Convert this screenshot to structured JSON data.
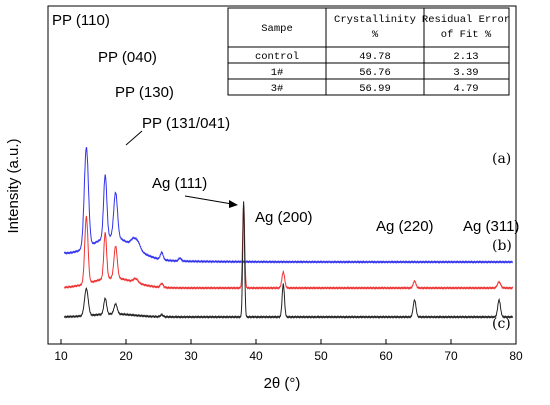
{
  "chart_data": {
    "type": "line",
    "xlabel": "2θ (°)",
    "ylabel": "Intensity (a.u.)",
    "xlim": [
      8,
      80
    ],
    "xticks": [
      10,
      20,
      30,
      40,
      50,
      60,
      70,
      80
    ],
    "series": [
      {
        "name": "(a)",
        "color": "#3333ee",
        "baseline": 62,
        "peaks": [
          {
            "x": 13.9,
            "h": 100,
            "w": 0.45
          },
          {
            "x": 16.8,
            "h": 63,
            "w": 0.35
          },
          {
            "x": 18.4,
            "h": 45,
            "w": 0.4
          },
          {
            "x": 21.2,
            "h": 8,
            "w": 0.6
          },
          {
            "x": 21.9,
            "h": 6,
            "w": 0.5
          },
          {
            "x": 25.5,
            "h": 7,
            "w": 0.3
          },
          {
            "x": 28.3,
            "h": 3,
            "w": 0.3
          }
        ]
      },
      {
        "name": "(b)",
        "color": "#ee3333",
        "baseline": 36,
        "peaks": [
          {
            "x": 13.9,
            "h": 67,
            "w": 0.35
          },
          {
            "x": 16.8,
            "h": 46,
            "w": 0.3
          },
          {
            "x": 18.4,
            "h": 32,
            "w": 0.35
          },
          {
            "x": 21.5,
            "h": 4,
            "w": 0.5
          },
          {
            "x": 25.5,
            "h": 4,
            "w": 0.3
          },
          {
            "x": 38.1,
            "h": 82,
            "w": 0.22
          },
          {
            "x": 44.2,
            "h": 16,
            "w": 0.3
          },
          {
            "x": 64.4,
            "h": 7,
            "w": 0.3
          },
          {
            "x": 77.4,
            "h": 6,
            "w": 0.35
          }
        ]
      },
      {
        "name": "(c)",
        "color": "#222222",
        "baseline": 7,
        "peaks": [
          {
            "x": 13.9,
            "h": 27,
            "w": 0.4
          },
          {
            "x": 16.8,
            "h": 16,
            "w": 0.3
          },
          {
            "x": 18.4,
            "h": 10,
            "w": 0.35
          },
          {
            "x": 25.5,
            "h": 2,
            "w": 0.3
          },
          {
            "x": 38.1,
            "h": 115,
            "w": 0.2
          },
          {
            "x": 44.2,
            "h": 33,
            "w": 0.25
          },
          {
            "x": 64.4,
            "h": 17,
            "w": 0.3
          },
          {
            "x": 77.4,
            "h": 17,
            "w": 0.3
          }
        ]
      }
    ],
    "annotations": [
      {
        "text": "PP (110)",
        "x": 13.9
      },
      {
        "text": "PP (040)",
        "x": 16.8
      },
      {
        "text": "PP (130)",
        "x": 18.4
      },
      {
        "text": "PP (131/041)",
        "x": 21.5
      },
      {
        "text": "Ag (111)",
        "x": 38.1
      },
      {
        "text": "Ag (200)",
        "x": 44.2
      },
      {
        "text": "Ag (220)",
        "x": 64.4
      },
      {
        "text": "Ag (311)",
        "x": 77.4
      }
    ],
    "table": {
      "headers": [
        "Sampe",
        "Crystallinity %",
        "Residual Error of Fit %"
      ],
      "rows": [
        [
          "control",
          "49.78",
          "2.13"
        ],
        [
          "1#",
          "56.76",
          "3.39"
        ],
        [
          "3#",
          "56.99",
          "4.79"
        ]
      ]
    }
  }
}
